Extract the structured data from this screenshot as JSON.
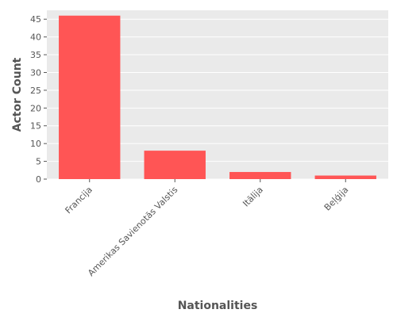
{
  "chart_data": {
    "type": "bar",
    "title": "",
    "xlabel": "Nationalities",
    "ylabel": "Actor Count",
    "categories": [
      "Francija",
      "Amerikas Savienotās Valstis",
      "Itālija",
      "Beļģija"
    ],
    "values": [
      46,
      8,
      2,
      1
    ],
    "ylim": [
      0,
      47.5
    ],
    "yticks": [
      0,
      5,
      10,
      15,
      20,
      25,
      30,
      35,
      40,
      45
    ],
    "grid": true,
    "legend": "none",
    "colors": {
      "bar": "#ff5555",
      "background": "#eaeaea",
      "grid": "#ffffff",
      "text": "#555555"
    }
  }
}
